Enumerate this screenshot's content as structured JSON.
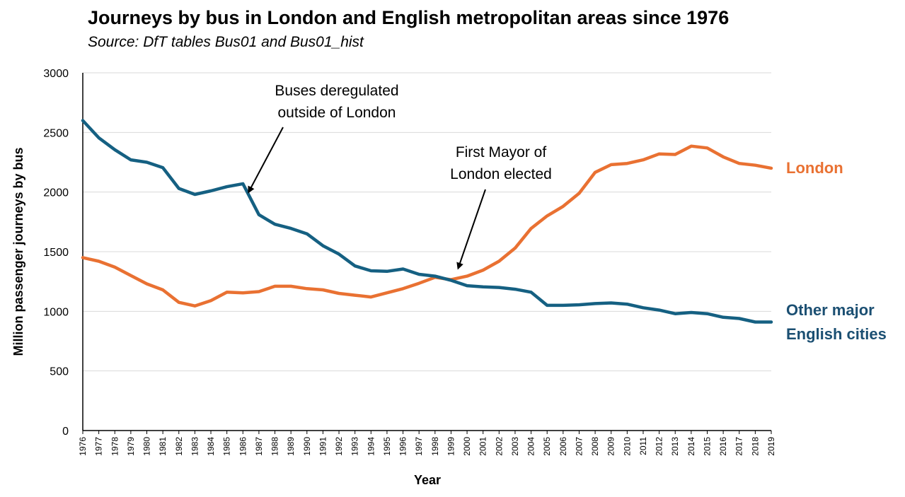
{
  "title": "Journeys by bus in London and English metropolitan areas since 1976",
  "subtitle": "Source: DfT tables Bus01 and Bus01_hist",
  "chart_data": {
    "type": "line",
    "xlabel": "Year",
    "ylabel": "Million passenger journeys by bus",
    "ylim": [
      0,
      3000
    ],
    "yticks": [
      0,
      500,
      1000,
      1500,
      2000,
      2500,
      3000
    ],
    "grid": true,
    "x": [
      1976,
      1977,
      1978,
      1979,
      1980,
      1981,
      1982,
      1983,
      1984,
      1985,
      1986,
      1987,
      1988,
      1989,
      1990,
      1991,
      1992,
      1993,
      1994,
      1995,
      1996,
      1997,
      1998,
      1999,
      2000,
      2001,
      2002,
      2003,
      2004,
      2005,
      2006,
      2007,
      2008,
      2009,
      2010,
      2011,
      2012,
      2013,
      2014,
      2015,
      2016,
      2017,
      2018,
      2019
    ],
    "series": [
      {
        "name": "London",
        "color": "#E97132",
        "values": [
          1450,
          1420,
          1370,
          1300,
          1230,
          1180,
          1075,
          1045,
          1090,
          1160,
          1155,
          1165,
          1210,
          1210,
          1190,
          1180,
          1150,
          1135,
          1120,
          1155,
          1190,
          1235,
          1285,
          1265,
          1295,
          1345,
          1420,
          1530,
          1695,
          1800,
          1880,
          1990,
          2165,
          2230,
          2240,
          2270,
          2320,
          2315,
          2385,
          2370,
          2295,
          2240,
          2225,
          2200
        ]
      },
      {
        "name": "Other major English cities",
        "color": "#156082",
        "values": [
          2600,
          2455,
          2355,
          2270,
          2250,
          2205,
          2030,
          1980,
          2010,
          2045,
          2070,
          1810,
          1730,
          1695,
          1650,
          1550,
          1480,
          1380,
          1340,
          1335,
          1355,
          1310,
          1295,
          1260,
          1215,
          1205,
          1200,
          1185,
          1160,
          1050,
          1050,
          1055,
          1065,
          1070,
          1060,
          1030,
          1010,
          980,
          990,
          980,
          950,
          940,
          910,
          910
        ]
      }
    ],
    "series_labels": {
      "london": "London",
      "other_line1": "Other major",
      "other_line2": "English cities"
    },
    "annotations": [
      {
        "lines": [
          "Buses deregulated",
          "outside of London"
        ],
        "year": 1986
      },
      {
        "lines": [
          "First Mayor of",
          "London elected"
        ],
        "year": 2000
      }
    ]
  }
}
